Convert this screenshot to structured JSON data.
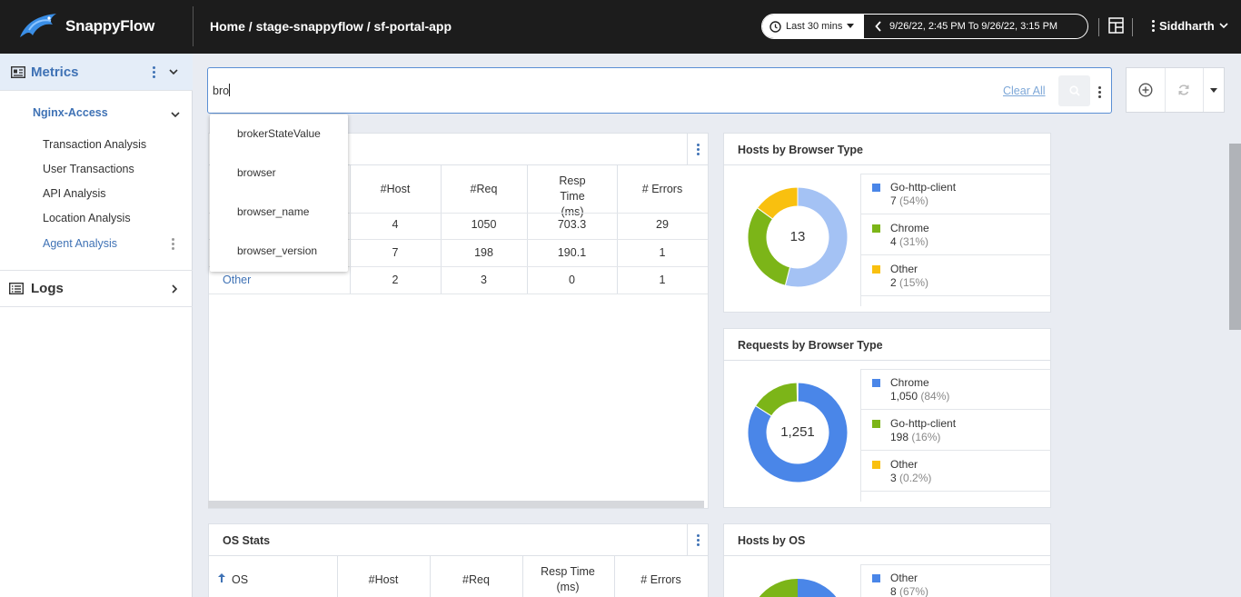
{
  "app": {
    "name": "SnappyFlow"
  },
  "header": {
    "breadcrumb": "Home / stage-snappyflow / sf-portal-app",
    "time_preset": "Last 30 mins",
    "time_range": "9/26/22, 2:45 PM To 9/26/22, 3:15 PM",
    "user": "Siddharth"
  },
  "sidebar": {
    "metrics_label": "Metrics",
    "group_label": "Nginx-Access",
    "items": [
      {
        "label": "Transaction Analysis"
      },
      {
        "label": "User Transactions"
      },
      {
        "label": "API Analysis"
      },
      {
        "label": "Location Analysis"
      },
      {
        "label": "Agent Analysis"
      }
    ],
    "logs_label": "Logs"
  },
  "search": {
    "value": "bro",
    "clear_label": "Clear All",
    "suggestions": [
      "brokerStateValue",
      "browser",
      "browser_name",
      "browser_version"
    ]
  },
  "browser_table": {
    "headers": [
      "#Host",
      "#Req",
      "Resp Time (ms)",
      "# Errors"
    ],
    "rows": [
      {
        "name": "",
        "host": "4",
        "req": "1050",
        "resp": "703.3",
        "errors": "29"
      },
      {
        "name": "",
        "host": "7",
        "req": "198",
        "resp": "190.1",
        "errors": "1"
      },
      {
        "name": "Other",
        "host": "2",
        "req": "3",
        "resp": "0",
        "errors": "1"
      }
    ]
  },
  "os_table": {
    "title": "OS Stats",
    "headers": [
      "OS",
      "#Host",
      "#Req",
      "Resp Time (ms)",
      "# Errors"
    ]
  },
  "hosts_by_browser": {
    "title": "Hosts by Browser Type",
    "total": "13",
    "slices": [
      {
        "name": "Go-http-client",
        "value": "7",
        "pct": "(54%)",
        "fraction": 0.54,
        "color": "#a4c2f4"
      },
      {
        "name": "Chrome",
        "value": "4",
        "pct": "(31%)",
        "fraction": 0.31,
        "color": "#7cb518"
      },
      {
        "name": "Other",
        "value": "2",
        "pct": "(15%)",
        "fraction": 0.15,
        "color": "#f9c00f"
      }
    ],
    "legend_colors": [
      "#4a86e8",
      "#7cb518",
      "#f9c00f"
    ]
  },
  "requests_by_browser": {
    "title": "Requests by Browser Type",
    "total": "1,251",
    "slices": [
      {
        "name": "Chrome",
        "value": "1,050",
        "pct": "(84%)",
        "fraction": 0.84,
        "color": "#4a86e8"
      },
      {
        "name": "Go-http-client",
        "value": "198",
        "pct": "(16%)",
        "fraction": 0.158,
        "color": "#7cb518"
      },
      {
        "name": "Other",
        "value": "3",
        "pct": "(0.2%)",
        "fraction": 0.002,
        "color": "#f9c00f"
      }
    ]
  },
  "hosts_by_os": {
    "title": "Hosts by OS",
    "slices": [
      {
        "name": "Other",
        "value": "8",
        "pct": "(67%)",
        "color": "#4a86e8"
      }
    ]
  }
}
